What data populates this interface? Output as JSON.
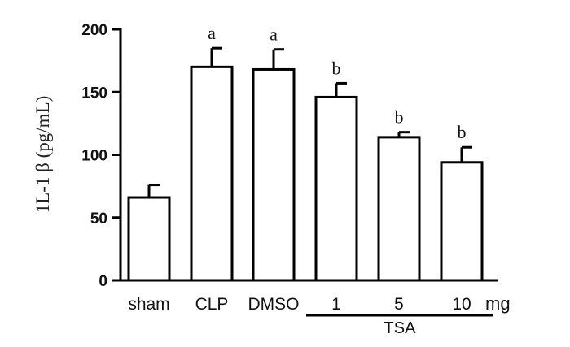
{
  "chart_data": {
    "type": "bar",
    "categories": [
      "sham",
      "CLP",
      "DMSO",
      "1",
      "5",
      "10"
    ],
    "values": [
      66,
      170,
      168,
      146,
      114,
      94
    ],
    "errors": [
      10,
      15,
      16,
      11,
      4,
      12
    ],
    "significance": [
      "",
      "a",
      "a",
      "b",
      "b",
      "b"
    ],
    "ylabel": "1L-1 β (pg/mL)",
    "ylim": [
      0,
      200
    ],
    "yticks": [
      0,
      50,
      100,
      150,
      200
    ],
    "unit_label": "mg",
    "group_label": "TSA",
    "group_start_index": 3,
    "grid": false,
    "legend": false
  }
}
